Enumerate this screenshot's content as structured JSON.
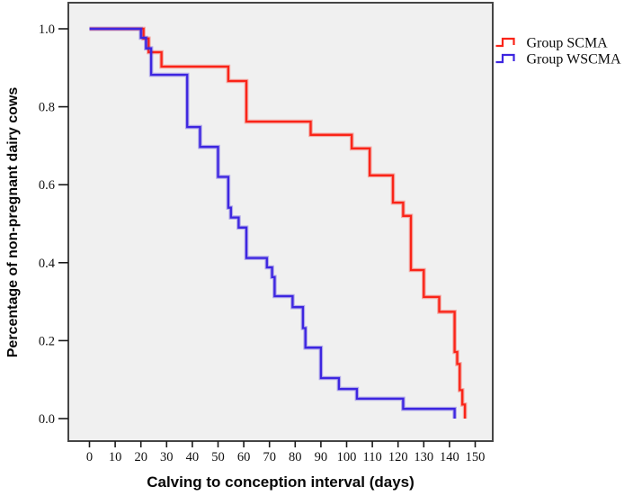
{
  "chart_data": {
    "type": "line",
    "subtype": "kaplan-meier-step-survival",
    "title": "",
    "xlabel": "Calving to conception interval (days)",
    "ylabel": "Percentage of non-pregnant dairy cows",
    "xlim": [
      0,
      150
    ],
    "ylim": [
      0.0,
      1.0
    ],
    "x_ticks": [
      0,
      10,
      20,
      30,
      40,
      50,
      60,
      70,
      80,
      90,
      100,
      110,
      120,
      130,
      140,
      150
    ],
    "y_ticks": [
      0.0,
      0.2,
      0.4,
      0.6,
      0.8,
      1.0
    ],
    "grid": false,
    "legend_position": "outside-top-right",
    "panel_background": "#f0f0f0",
    "panel_border_color": "#454545",
    "series": [
      {
        "name": "Group SCMA",
        "color": "#fa2418",
        "points": [
          [
            0,
            1.0
          ],
          [
            21,
            0.975
          ],
          [
            23,
            0.94
          ],
          [
            28,
            0.903
          ],
          [
            54,
            0.866
          ],
          [
            61,
            0.762
          ],
          [
            86,
            0.728
          ],
          [
            102,
            0.693
          ],
          [
            109,
            0.624
          ],
          [
            118,
            0.554
          ],
          [
            122,
            0.52
          ],
          [
            125,
            0.381
          ],
          [
            130,
            0.312
          ],
          [
            136,
            0.274
          ],
          [
            142,
            0.171
          ],
          [
            143,
            0.14
          ],
          [
            144,
            0.073
          ],
          [
            145,
            0.036
          ],
          [
            146,
            0.0
          ]
        ]
      },
      {
        "name": "Group WSCMA",
        "color": "#3d26e0",
        "points": [
          [
            0,
            1.0
          ],
          [
            20,
            0.977
          ],
          [
            22,
            0.95
          ],
          [
            24,
            0.882
          ],
          [
            38,
            0.748
          ],
          [
            43,
            0.697
          ],
          [
            50,
            0.62
          ],
          [
            54,
            0.541
          ],
          [
            55,
            0.516
          ],
          [
            58,
            0.49
          ],
          [
            61,
            0.412
          ],
          [
            69,
            0.388
          ],
          [
            71,
            0.363
          ],
          [
            72,
            0.314
          ],
          [
            79,
            0.286
          ],
          [
            83,
            0.232
          ],
          [
            84,
            0.182
          ],
          [
            90,
            0.104
          ],
          [
            97,
            0.076
          ],
          [
            104,
            0.051
          ],
          [
            122,
            0.025
          ],
          [
            142,
            0.0
          ]
        ]
      }
    ]
  }
}
